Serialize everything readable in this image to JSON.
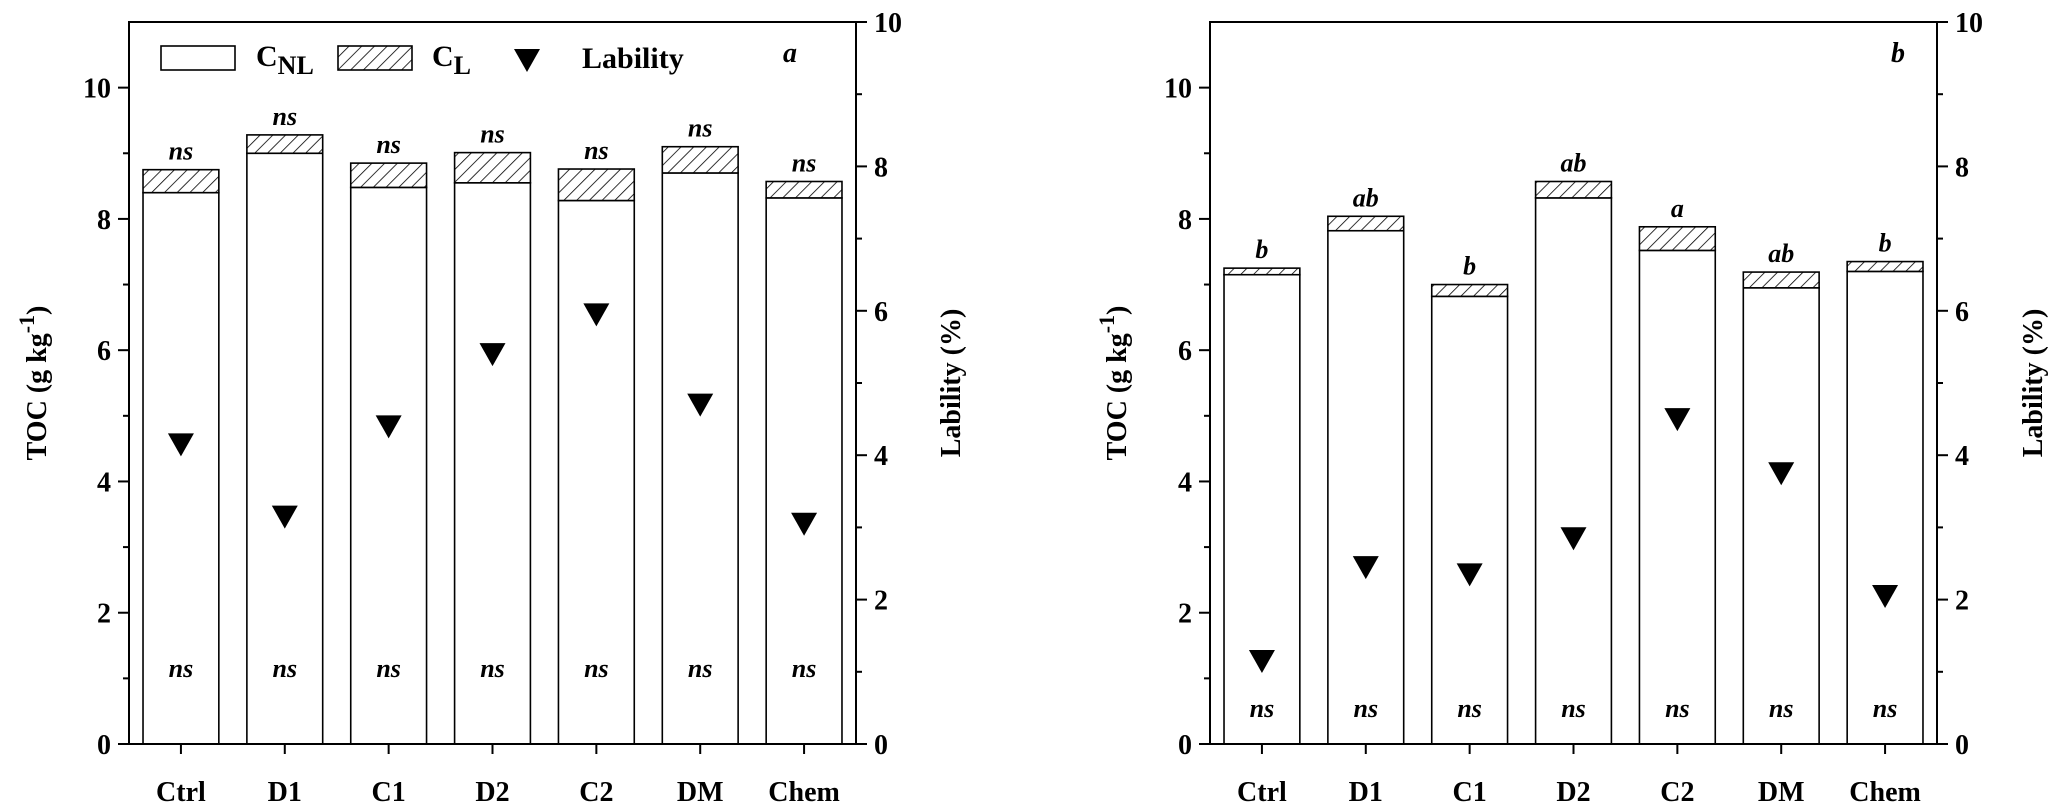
{
  "chart_data": [
    {
      "type": "bar",
      "panel_letter": "a",
      "categories": [
        "Ctrl",
        "D1",
        "C1",
        "D2",
        "C2",
        "DM",
        "Chem"
      ],
      "series": [
        {
          "name": "CNL",
          "values": [
            8.4,
            9.0,
            8.48,
            8.55,
            8.28,
            8.7,
            8.32
          ]
        },
        {
          "name": "CL",
          "values": [
            0.35,
            0.28,
            0.37,
            0.46,
            0.48,
            0.4,
            0.25
          ]
        }
      ],
      "lability_series": {
        "name": "Lability",
        "values": [
          4.15,
          3.15,
          4.4,
          5.4,
          5.95,
          4.7,
          3.05
        ]
      },
      "top_annotations": [
        "ns",
        "ns",
        "ns",
        "ns",
        "ns",
        "ns",
        "ns"
      ],
      "bottom_annotations": [
        "ns",
        "ns",
        "ns",
        "ns",
        "ns",
        "ns",
        "ns"
      ],
      "ylabel": "TOC (g kg-1)",
      "y2label": "Lability (%)",
      "ylim": [
        0,
        11
      ],
      "y2lim": [
        0,
        10
      ],
      "yticks": [
        "0",
        "2",
        "4",
        "6",
        "8",
        "10"
      ],
      "y2ticks": [
        "0",
        "2",
        "4",
        "6",
        "8",
        "10"
      ],
      "legend": {
        "position": "top",
        "items": [
          "CNL",
          "CL",
          "Lability"
        ]
      }
    },
    {
      "type": "bar",
      "panel_letter": "b",
      "categories": [
        "Ctrl",
        "D1",
        "C1",
        "D2",
        "C2",
        "DM",
        "Chem"
      ],
      "series": [
        {
          "name": "CNL",
          "values": [
            7.15,
            7.82,
            6.82,
            8.32,
            7.52,
            6.95,
            7.2
          ]
        },
        {
          "name": "CL",
          "values": [
            0.1,
            0.22,
            0.18,
            0.25,
            0.36,
            0.24,
            0.15
          ]
        }
      ],
      "lability_series": {
        "name": "Lability",
        "values": [
          1.15,
          2.45,
          2.35,
          2.85,
          4.5,
          3.75,
          2.05
        ]
      },
      "top_annotations": [
        "b",
        "ab",
        "b",
        "ab",
        "a",
        "ab",
        "b"
      ],
      "bottom_annotations": [
        "ns",
        "ns",
        "ns",
        "ns",
        "ns",
        "ns",
        "ns"
      ],
      "ylabel": "TOC (g kg-1)",
      "y2label": "Lability (%)",
      "ylim": [
        0,
        11
      ],
      "y2lim": [
        0,
        10
      ],
      "yticks": [
        "0",
        "2",
        "4",
        "6",
        "8",
        "10"
      ],
      "y2ticks": [
        "0",
        "2",
        "4",
        "6",
        "8",
        "10"
      ]
    }
  ],
  "legend_labels": {
    "cnl_main": "C",
    "cnl_sub": "NL",
    "cl_main": "C",
    "cl_sub": "L",
    "lability": "Lability"
  },
  "axis_text": {
    "ylabel_main": "TOC (g kg",
    "ylabel_sup": "-1",
    "ylabel_close": ")",
    "y2label": "Lability (%)"
  }
}
